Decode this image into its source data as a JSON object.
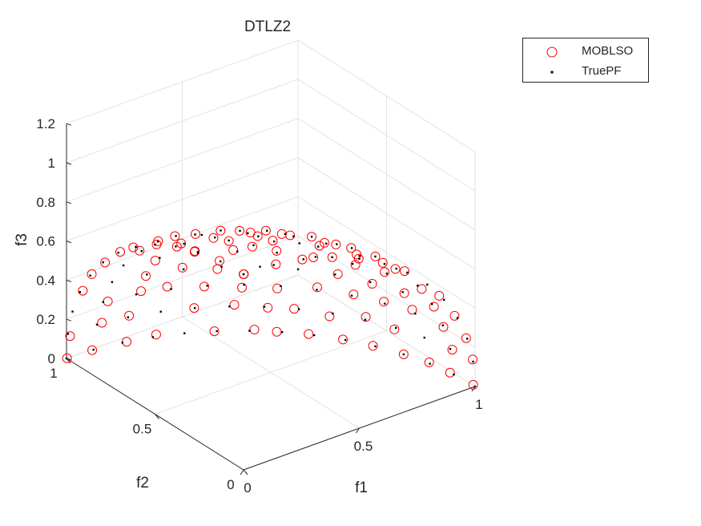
{
  "chart_data": {
    "type": "scatter",
    "projection": "3d",
    "title": "DTLZ2",
    "xlabel": "f1",
    "ylabel": "f2",
    "zlabel": "f3",
    "xlim": [
      0,
      1
    ],
    "ylim": [
      0,
      1
    ],
    "zlim": [
      0,
      1.2
    ],
    "xticks": [
      "0",
      "0.5",
      "1"
    ],
    "yticks": [
      "0",
      "0.5",
      "1"
    ],
    "zticks": [
      "0",
      "0.2",
      "0.4",
      "0.6",
      "0.8",
      "1",
      "1.2"
    ],
    "grid": true,
    "legend_position": "top-right",
    "series": [
      {
        "name": "MOBLSO",
        "marker": "open-circle",
        "color": "#ff0000",
        "points": "approx. 180 solutions on the unit sphere f1^2+f2^2+f3^2=1, f1,f2,f3>=0"
      },
      {
        "name": "TruePF",
        "marker": "dot",
        "color": "#000000",
        "points": "uniform reference set on the unit sphere f1^2+f2^2+f3^2=1, f1,f2,f3>=0"
      }
    ]
  }
}
